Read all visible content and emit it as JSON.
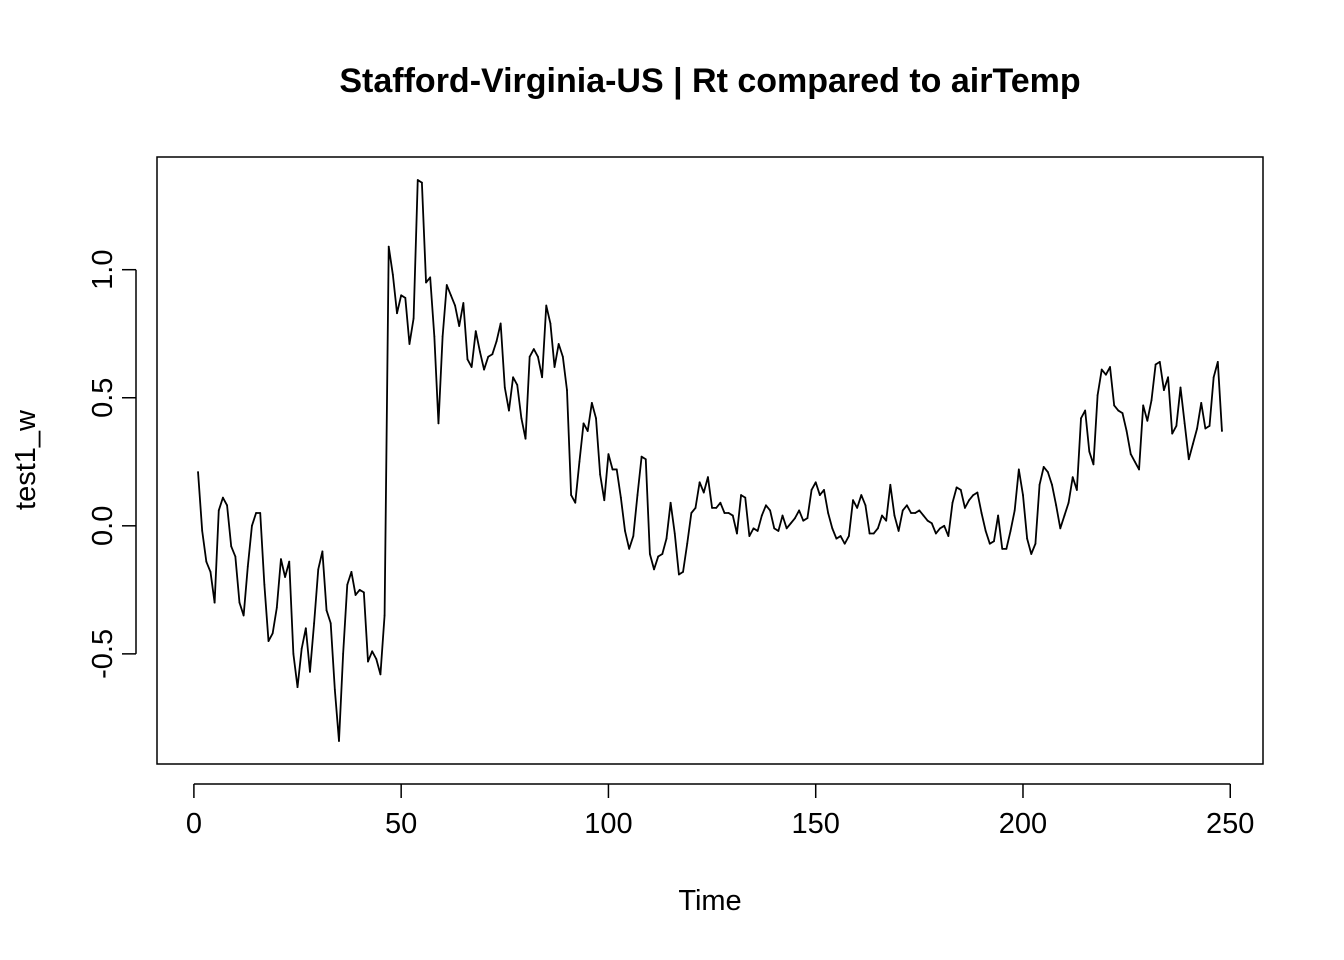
{
  "chart_data": {
    "type": "line",
    "title": "Stafford-Virginia-US | Rt compared to airTemp",
    "xlabel": "Time",
    "ylabel": "test1_w",
    "xlim": [
      -8.9,
      257.9
    ],
    "ylim": [
      -0.93,
      1.44
    ],
    "xticks": [
      0,
      50,
      100,
      150,
      200,
      250
    ],
    "yticks": [
      -0.5,
      0.0,
      0.5,
      1.0
    ],
    "xtick_labels": [
      "0",
      "50",
      "100",
      "150",
      "200",
      "250"
    ],
    "ytick_labels": [
      "-0.5",
      "0.0",
      "0.5",
      "1.0"
    ],
    "grid": false,
    "series": [
      {
        "color": "#000000",
        "x_start": 1,
        "values": [
          0.21,
          -0.02,
          -0.14,
          -0.18,
          -0.3,
          0.06,
          0.11,
          0.08,
          -0.08,
          -0.12,
          -0.3,
          -0.35,
          -0.16,
          0.0,
          0.05,
          0.05,
          -0.23,
          -0.45,
          -0.42,
          -0.32,
          -0.13,
          -0.2,
          -0.14,
          -0.5,
          -0.63,
          -0.48,
          -0.4,
          -0.57,
          -0.38,
          -0.17,
          -0.1,
          -0.33,
          -0.38,
          -0.64,
          -0.84,
          -0.5,
          -0.23,
          -0.18,
          -0.27,
          -0.25,
          -0.26,
          -0.53,
          -0.49,
          -0.52,
          -0.58,
          -0.35,
          1.09,
          0.98,
          0.83,
          0.9,
          0.89,
          0.71,
          0.81,
          1.35,
          1.34,
          0.95,
          0.97,
          0.74,
          0.4,
          0.74,
          0.94,
          0.9,
          0.86,
          0.78,
          0.87,
          0.65,
          0.62,
          0.76,
          0.68,
          0.61,
          0.66,
          0.67,
          0.72,
          0.79,
          0.54,
          0.45,
          0.58,
          0.55,
          0.42,
          0.34,
          0.66,
          0.69,
          0.66,
          0.58,
          0.86,
          0.79,
          0.62,
          0.71,
          0.66,
          0.53,
          0.12,
          0.09,
          0.25,
          0.4,
          0.37,
          0.48,
          0.42,
          0.2,
          0.1,
          0.28,
          0.22,
          0.22,
          0.11,
          -0.02,
          -0.09,
          -0.04,
          0.12,
          0.27,
          0.26,
          -0.11,
          -0.17,
          -0.12,
          -0.11,
          -0.05,
          0.09,
          -0.03,
          -0.19,
          -0.18,
          -0.07,
          0.05,
          0.07,
          0.17,
          0.13,
          0.19,
          0.07,
          0.07,
          0.09,
          0.05,
          0.05,
          0.04,
          -0.03,
          0.12,
          0.11,
          -0.04,
          -0.01,
          -0.02,
          0.04,
          0.08,
          0.06,
          -0.01,
          -0.02,
          0.04,
          -0.01,
          0.01,
          0.03,
          0.06,
          0.02,
          0.03,
          0.14,
          0.17,
          0.12,
          0.14,
          0.05,
          -0.01,
          -0.05,
          -0.04,
          -0.07,
          -0.04,
          0.1,
          0.07,
          0.12,
          0.08,
          -0.03,
          -0.03,
          -0.01,
          0.04,
          0.02,
          0.16,
          0.04,
          -0.02,
          0.06,
          0.08,
          0.05,
          0.05,
          0.06,
          0.04,
          0.02,
          0.01,
          -0.03,
          -0.01,
          0.0,
          -0.04,
          0.09,
          0.15,
          0.14,
          0.07,
          0.1,
          0.12,
          0.13,
          0.05,
          -0.02,
          -0.07,
          -0.06,
          0.04,
          -0.09,
          -0.09,
          -0.02,
          0.06,
          0.22,
          0.12,
          -0.05,
          -0.11,
          -0.07,
          0.16,
          0.23,
          0.21,
          0.16,
          0.08,
          -0.01,
          0.04,
          0.09,
          0.19,
          0.14,
          0.42,
          0.45,
          0.29,
          0.24,
          0.51,
          0.61,
          0.59,
          0.62,
          0.47,
          0.45,
          0.44,
          0.37,
          0.28,
          0.25,
          0.22,
          0.47,
          0.41,
          0.49,
          0.63,
          0.64,
          0.53,
          0.58,
          0.36,
          0.39,
          0.54,
          0.4,
          0.26,
          0.32,
          0.38,
          0.48,
          0.38,
          0.39,
          0.58,
          0.64,
          0.37
        ]
      }
    ]
  }
}
